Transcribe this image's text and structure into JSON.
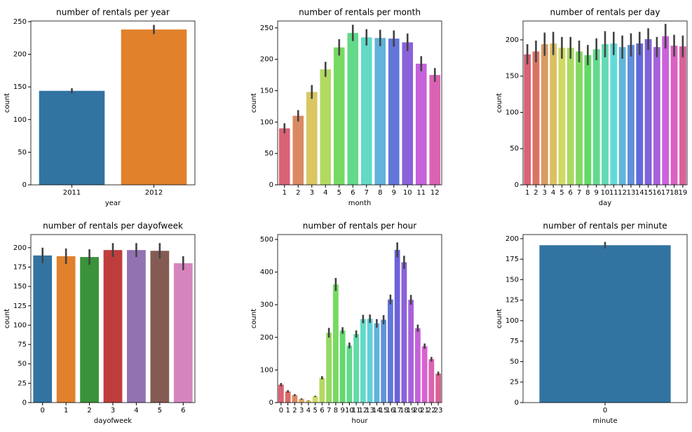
{
  "chart_data": [
    {
      "type": "bar",
      "title": "number of rentals per year",
      "xlabel": "year",
      "ylabel": "count",
      "categories": [
        "2011",
        "2012"
      ],
      "values": [
        144,
        238
      ],
      "errors": [
        4,
        7
      ],
      "colors": [
        "#3274a1",
        "#e1812c"
      ],
      "ylim": [
        0,
        251
      ],
      "yticks": [
        0,
        50,
        100,
        150,
        200,
        250
      ]
    },
    {
      "type": "bar",
      "title": "number of rentals per month",
      "xlabel": "month",
      "ylabel": "count",
      "categories": [
        "1",
        "2",
        "3",
        "4",
        "5",
        "6",
        "7",
        "8",
        "9",
        "10",
        "11",
        "12"
      ],
      "values": [
        90,
        110,
        148,
        184,
        219,
        242,
        235,
        234,
        233,
        227,
        193,
        175
      ],
      "errors": [
        8,
        9,
        11,
        12,
        13,
        13,
        13,
        13,
        13,
        14,
        12,
        11
      ],
      "palette": "husl",
      "ylim": [
        0,
        261
      ],
      "yticks": [
        0,
        50,
        100,
        150,
        200,
        250
      ]
    },
    {
      "type": "bar",
      "title": "number of rentals per day",
      "xlabel": "day",
      "ylabel": "count",
      "categories": [
        "1",
        "2",
        "3",
        "4",
        "5",
        "6",
        "7",
        "8",
        "9",
        "10",
        "11",
        "12",
        "13",
        "14",
        "15",
        "16",
        "17",
        "18",
        "19"
      ],
      "values": [
        180,
        184,
        194,
        195,
        189,
        189,
        184,
        179,
        187,
        194,
        195,
        190,
        193,
        195,
        201,
        190,
        205,
        192,
        191
      ],
      "errors": [
        14,
        15,
        16,
        16,
        15,
        15,
        15,
        14,
        15,
        18,
        16,
        16,
        16,
        16,
        15,
        14,
        17,
        15,
        15
      ],
      "palette": "husl",
      "ylim": [
        0,
        226
      ],
      "yticks": [
        0,
        50,
        100,
        150,
        200
      ]
    },
    {
      "type": "bar",
      "title": "number of rentals per dayofweek",
      "xlabel": "dayofweek",
      "ylabel": "count",
      "categories": [
        "0",
        "1",
        "2",
        "3",
        "4",
        "5",
        "6"
      ],
      "values": [
        190,
        189,
        188,
        197,
        197,
        196,
        180
      ],
      "errors": [
        10,
        10,
        10,
        9,
        9,
        10,
        9
      ],
      "colors": [
        "#3274a1",
        "#e1812c",
        "#3a923a",
        "#c03d3e",
        "#9372b2",
        "#845b53",
        "#d684bd"
      ],
      "ylim": [
        0,
        217
      ],
      "yticks": [
        0,
        25,
        50,
        75,
        100,
        125,
        150,
        175,
        200
      ]
    },
    {
      "type": "bar",
      "title": "number of rentals per hour",
      "xlabel": "hour",
      "ylabel": "count",
      "categories": [
        "0",
        "1",
        "2",
        "3",
        "4",
        "5",
        "6",
        "7",
        "8",
        "9",
        "10",
        "11",
        "12",
        "13",
        "14",
        "15",
        "16",
        "17",
        "18",
        "19",
        "20",
        "21",
        "22",
        "23"
      ],
      "values": [
        55,
        34,
        23,
        11,
        6,
        19,
        76,
        214,
        362,
        221,
        175,
        210,
        256,
        257,
        243,
        254,
        316,
        468,
        430,
        315,
        228,
        173,
        133,
        89
      ],
      "errors": [
        5,
        4,
        3,
        2,
        1,
        2,
        5,
        15,
        20,
        10,
        9,
        11,
        13,
        13,
        13,
        14,
        15,
        23,
        20,
        15,
        11,
        8,
        7,
        6
      ],
      "palette": "husl",
      "ylim": [
        0,
        515
      ],
      "yticks": [
        0,
        100,
        200,
        300,
        400,
        500
      ]
    },
    {
      "type": "bar",
      "title": "number of rentals per minute",
      "xlabel": "minute",
      "ylabel": "count",
      "categories": [
        "0"
      ],
      "values": [
        192
      ],
      "errors": [
        4
      ],
      "colors": [
        "#3274a1"
      ],
      "ylim": [
        0,
        205
      ],
      "yticks": [
        0,
        25,
        50,
        75,
        100,
        125,
        150,
        175,
        200
      ]
    }
  ]
}
